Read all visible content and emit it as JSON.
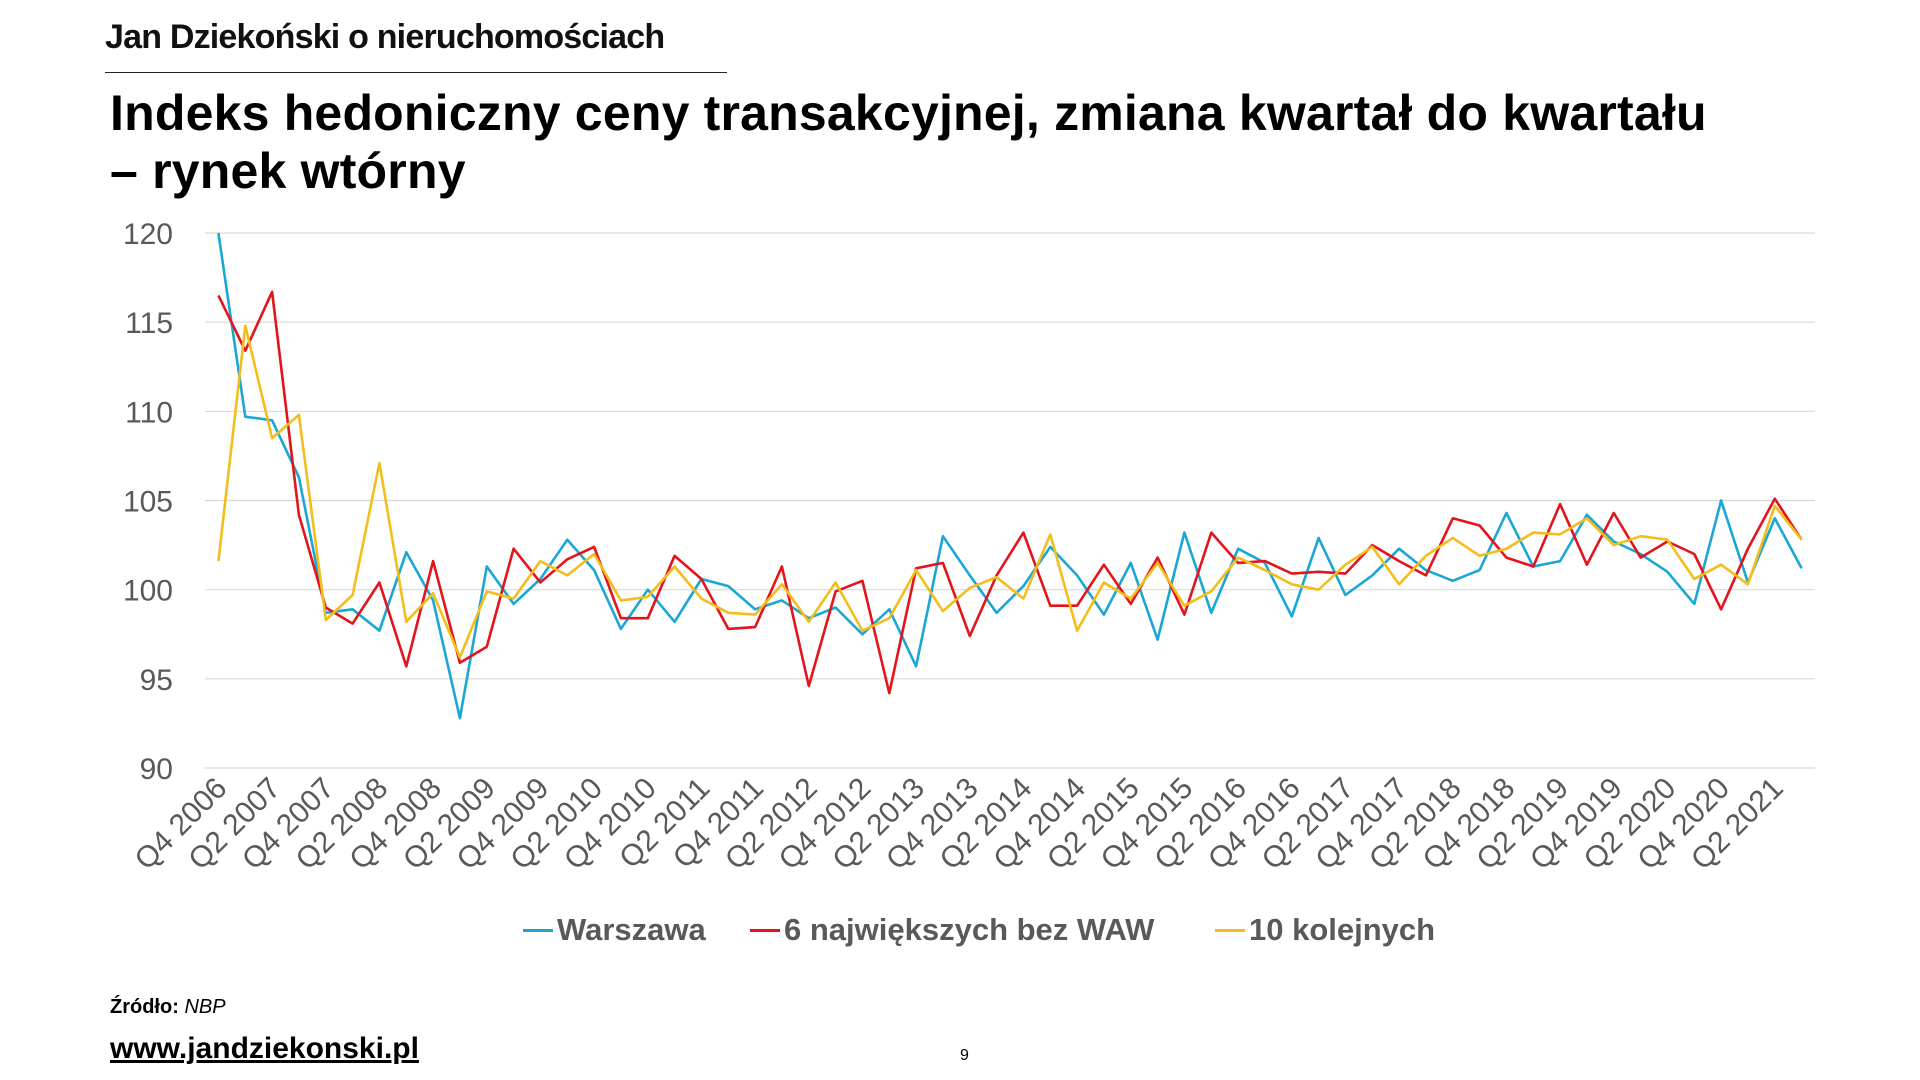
{
  "header": {
    "brand": "Jan Dziekoński o nieruchomościach",
    "title_line1": "Indeks hedoniczny ceny transakcyjnej, zmiana kwartał do kwartału",
    "title_line2": "– rynek wtórny"
  },
  "footer": {
    "source_label": "Źródło:",
    "source_value": "NBP",
    "url": "www.jandziekonski.pl",
    "page_number": "9"
  },
  "chart_data": {
    "type": "line",
    "grid": true,
    "legend_position": "bottom",
    "ylim": [
      90,
      120
    ],
    "y_ticks": [
      "90",
      "95",
      "100",
      "105",
      "110",
      "115",
      "120"
    ],
    "x_tick_labels": [
      "Q4 2006",
      "Q2 2007",
      "Q4 2007",
      "Q2 2008",
      "Q4 2008",
      "Q2 2009",
      "Q4 2009",
      "Q2 2010",
      "Q4 2010",
      "Q2 2011",
      "Q4 2011",
      "Q2 2012",
      "Q4 2012",
      "Q2 2013",
      "Q4 2013",
      "Q2 2014",
      "Q4 2014",
      "Q2 2015",
      "Q4 2015",
      "Q2 2016",
      "Q4 2016",
      "Q2 2017",
      "Q4 2017",
      "Q2 2018",
      "Q4 2018",
      "Q2 2019",
      "Q4 2019",
      "Q2 2020",
      "Q4 2020",
      "Q2 2021"
    ],
    "x": [
      "Q4 2006",
      "Q1 2007",
      "Q2 2007",
      "Q3 2007",
      "Q4 2007",
      "Q1 2008",
      "Q2 2008",
      "Q3 2008",
      "Q4 2008",
      "Q1 2009",
      "Q2 2009",
      "Q3 2009",
      "Q4 2009",
      "Q1 2010",
      "Q2 2010",
      "Q3 2010",
      "Q4 2010",
      "Q1 2011",
      "Q2 2011",
      "Q3 2011",
      "Q4 2011",
      "Q1 2012",
      "Q2 2012",
      "Q3 2012",
      "Q4 2012",
      "Q1 2013",
      "Q2 2013",
      "Q3 2013",
      "Q4 2013",
      "Q1 2014",
      "Q2 2014",
      "Q3 2014",
      "Q4 2014",
      "Q1 2015",
      "Q2 2015",
      "Q3 2015",
      "Q4 2015",
      "Q1 2016",
      "Q2 2016",
      "Q3 2016",
      "Q4 2016",
      "Q1 2017",
      "Q2 2017",
      "Q3 2017",
      "Q4 2017",
      "Q1 2018",
      "Q2 2018",
      "Q3 2018",
      "Q4 2018",
      "Q1 2019",
      "Q2 2019",
      "Q3 2019",
      "Q4 2019",
      "Q1 2020",
      "Q2 2020",
      "Q3 2020",
      "Q4 2020",
      "Q1 2021",
      "Q2 2021",
      "Q3 2021"
    ],
    "series": [
      {
        "name": "Warszawa",
        "color": "#1aa7d6",
        "values": [
          120.0,
          109.7,
          109.5,
          106.3,
          98.7,
          98.9,
          97.7,
          102.1,
          99.4,
          92.8,
          101.3,
          99.2,
          100.6,
          102.8,
          101.1,
          97.8,
          100.0,
          98.2,
          100.6,
          100.2,
          98.9,
          99.4,
          98.4,
          99.0,
          97.5,
          98.9,
          95.7,
          103.0,
          100.8,
          98.7,
          100.2,
          102.4,
          100.8,
          98.6,
          101.5,
          97.2,
          103.2,
          98.7,
          102.3,
          101.5,
          98.5,
          102.9,
          99.7,
          100.8,
          102.3,
          101.1,
          100.5,
          101.1,
          104.3,
          101.3,
          101.6,
          104.2,
          102.7,
          102.0,
          101.0,
          99.2,
          105.0,
          100.4,
          104.0,
          101.2
        ]
      },
      {
        "name": "6 największych bez WAW",
        "color": "#e3141b",
        "values": [
          116.5,
          113.4,
          116.7,
          104.2,
          99.0,
          98.1,
          100.4,
          95.7,
          101.6,
          95.9,
          96.8,
          102.3,
          100.4,
          101.7,
          102.4,
          98.4,
          98.4,
          101.9,
          100.6,
          97.8,
          97.9,
          101.3,
          94.6,
          99.9,
          100.5,
          94.2,
          101.2,
          101.5,
          97.4,
          100.8,
          103.2,
          99.1,
          99.1,
          101.4,
          99.2,
          101.8,
          98.6,
          103.2,
          101.5,
          101.6,
          100.9,
          101.0,
          100.9,
          102.5,
          101.6,
          100.8,
          104.0,
          103.6,
          101.8,
          101.3,
          104.8,
          101.4,
          104.3,
          101.8,
          102.7,
          102.0,
          98.9,
          102.3,
          105.1,
          102.8
        ]
      },
      {
        "name": "10 kolejnych",
        "color": "#f3bd1c",
        "values": [
          101.6,
          114.8,
          108.5,
          109.8,
          98.3,
          99.7,
          107.1,
          98.2,
          99.8,
          96.2,
          99.9,
          99.5,
          101.6,
          100.8,
          102.0,
          99.4,
          99.6,
          101.3,
          99.5,
          98.7,
          98.6,
          100.3,
          98.2,
          100.4,
          97.7,
          98.4,
          101.1,
          98.8,
          100.1,
          100.7,
          99.5,
          103.1,
          97.7,
          100.4,
          99.5,
          101.5,
          99.1,
          99.9,
          101.8,
          101.1,
          100.3,
          100.0,
          101.4,
          102.4,
          100.3,
          101.9,
          102.9,
          101.9,
          102.3,
          103.2,
          103.1,
          104.0,
          102.5,
          103.0,
          102.8,
          100.6,
          101.4,
          100.3,
          104.7,
          102.8
        ]
      }
    ]
  }
}
